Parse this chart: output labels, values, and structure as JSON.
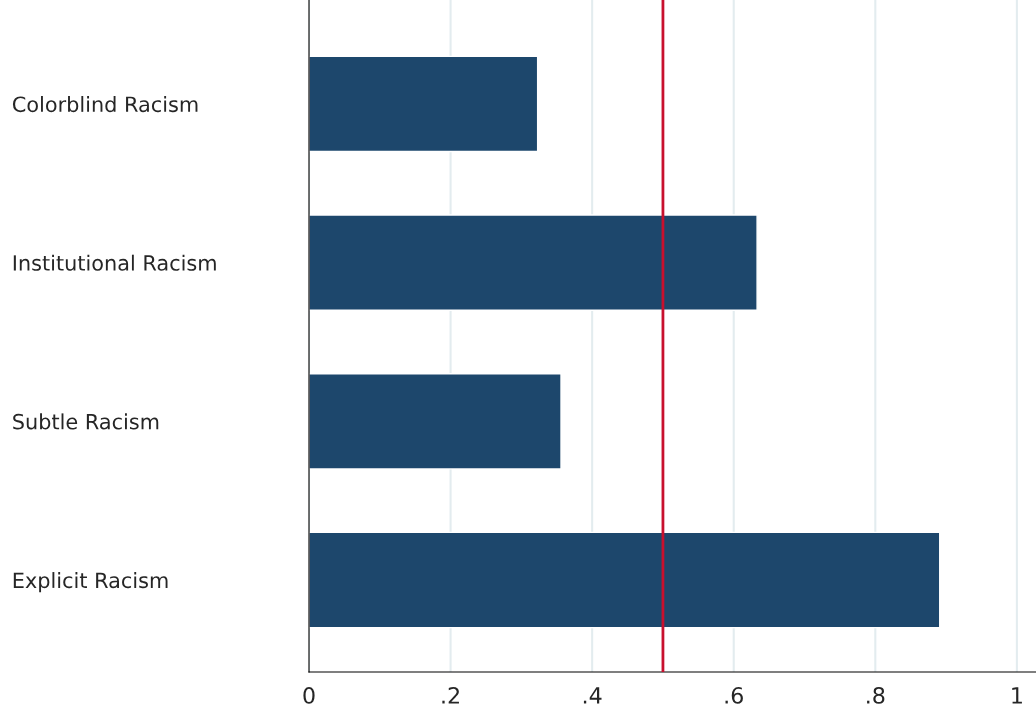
{
  "chart_data": {
    "type": "bar",
    "orientation": "horizontal",
    "categories": [
      "Colorblind Racism",
      "Institutional Racism",
      "Subtle Racism",
      "Explicit Racism"
    ],
    "values": [
      0.323,
      0.633,
      0.356,
      0.891
    ],
    "color": "#1d476c",
    "xlim": [
      0,
      1.027
    ],
    "xticks": [
      0,
      {
        "value": 0.2,
        "label": ".2"
      },
      {
        "value": 0.4,
        "label": ".4"
      },
      {
        "value": 0.6,
        "label": ".6"
      },
      {
        "value": 0.8,
        "label": ".8"
      },
      1
    ],
    "grid": "x",
    "ref_lines": [
      {
        "axis": "x",
        "value": 0.5,
        "color": "#c8102e"
      }
    ]
  }
}
